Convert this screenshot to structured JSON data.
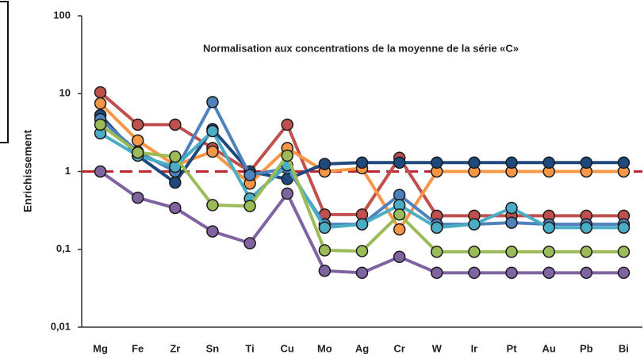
{
  "chart_data": {
    "type": "line",
    "title": "Normalisation aux concentrations de la moyenne de la série «C»",
    "ylabel": "Enrichissement",
    "categories": [
      "Mg",
      "Fe",
      "Zr",
      "Sn",
      "Ti",
      "Cu",
      "Mo",
      "Ag",
      "Cr",
      "W",
      "Ir",
      "Pt",
      "Au",
      "Pb",
      "Bi"
    ],
    "ylog": true,
    "ylim": [
      0.01,
      100
    ],
    "yticks": [
      {
        "value": 0.01,
        "label": "0,01"
      },
      {
        "value": 0.1,
        "label": "0,1"
      },
      1,
      10,
      100
    ],
    "hline": {
      "value": 1,
      "color": "#c0262d",
      "dashed": true
    },
    "series": [
      {
        "color": "#c0504d",
        "values": [
          10.4,
          4.0,
          4.0,
          2.0,
          1.0,
          4.0,
          0.28,
          0.28,
          1.5,
          0.27,
          0.27,
          0.27,
          0.27,
          0.27,
          0.27
        ]
      },
      {
        "color": "#f79646",
        "values": [
          7.5,
          2.5,
          1.2,
          1.8,
          0.7,
          2.0,
          1.0,
          1.1,
          0.18,
          1.0,
          1.0,
          1.0,
          1.0,
          1.0,
          1.0
        ]
      },
      {
        "color": "#1f497d",
        "values": [
          5.3,
          1.6,
          0.72,
          3.5,
          1.0,
          0.8,
          1.25,
          1.3,
          1.3,
          1.3,
          1.3,
          1.3,
          1.3,
          1.3,
          1.3
        ]
      },
      {
        "color": "#4f81bd",
        "values": [
          4.7,
          1.8,
          1.0,
          7.8,
          0.9,
          1.1,
          0.21,
          0.21,
          0.5,
          0.21,
          0.21,
          0.22,
          0.21,
          0.21,
          0.21
        ]
      },
      {
        "color": "#4bacc6",
        "values": [
          3.1,
          1.6,
          1.15,
          3.3,
          0.45,
          1.2,
          0.19,
          0.21,
          0.37,
          0.19,
          0.21,
          0.34,
          0.19,
          0.19,
          0.19
        ]
      },
      {
        "color": "#9bbb59",
        "values": [
          4.0,
          1.75,
          1.55,
          0.37,
          0.36,
          1.6,
          0.097,
          0.095,
          0.28,
          0.093,
          0.093,
          0.093,
          0.093,
          0.093,
          0.093
        ]
      },
      {
        "color": "#8064a2",
        "values": [
          1.0,
          0.46,
          0.34,
          0.17,
          0.12,
          0.52,
          0.053,
          0.05,
          0.08,
          0.05,
          0.05,
          0.05,
          0.05,
          0.05,
          0.05
        ]
      }
    ]
  }
}
